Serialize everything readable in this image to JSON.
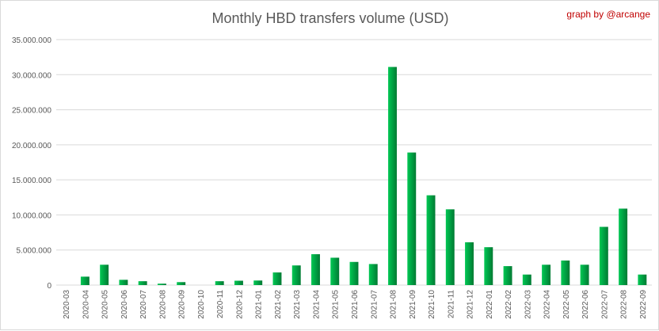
{
  "chart_data": {
    "type": "bar",
    "title": "Monthly HBD transfers volume (USD)",
    "credit": "graph by @arcange",
    "xlabel": "",
    "ylabel": "",
    "ylim": [
      0,
      35000000
    ],
    "y_ticks": [
      0,
      5000000,
      10000000,
      15000000,
      20000000,
      25000000,
      30000000,
      35000000
    ],
    "y_tick_labels": [
      "0",
      "5.000.000",
      "10.000.000",
      "15.000.000",
      "20.000.000",
      "25.000.000",
      "30.000.000",
      "35.000.000"
    ],
    "grid": true,
    "legend": "none",
    "colors": {
      "bar_light": "#00c853",
      "bar_dark": "#007a33",
      "grid": "#d9d9d9",
      "text": "#595959",
      "credit": "#c00000"
    },
    "categories": [
      "2020-03",
      "2020-04",
      "2020-05",
      "2020-06",
      "2020-07",
      "2020-08",
      "2020-09",
      "2020-10",
      "2020-11",
      "2020-12",
      "2021-01",
      "2021-02",
      "2021-03",
      "2021-04",
      "2021-05",
      "2021-06",
      "2021-07",
      "2021-08",
      "2021-09",
      "2021-10",
      "2021-11",
      "2021-12",
      "2022-01",
      "2022-02",
      "2022-03",
      "2022-04",
      "2022-05",
      "2022-06",
      "2022-07",
      "2022-08",
      "2022-09"
    ],
    "values": [
      0,
      1200000,
      2900000,
      750000,
      550000,
      200000,
      420000,
      0,
      550000,
      620000,
      650000,
      1800000,
      2800000,
      4400000,
      3900000,
      3300000,
      3000000,
      31100000,
      18900000,
      12800000,
      10800000,
      6100000,
      5400000,
      2700000,
      1500000,
      2900000,
      3500000,
      2900000,
      8300000,
      10900000,
      1500000
    ]
  }
}
